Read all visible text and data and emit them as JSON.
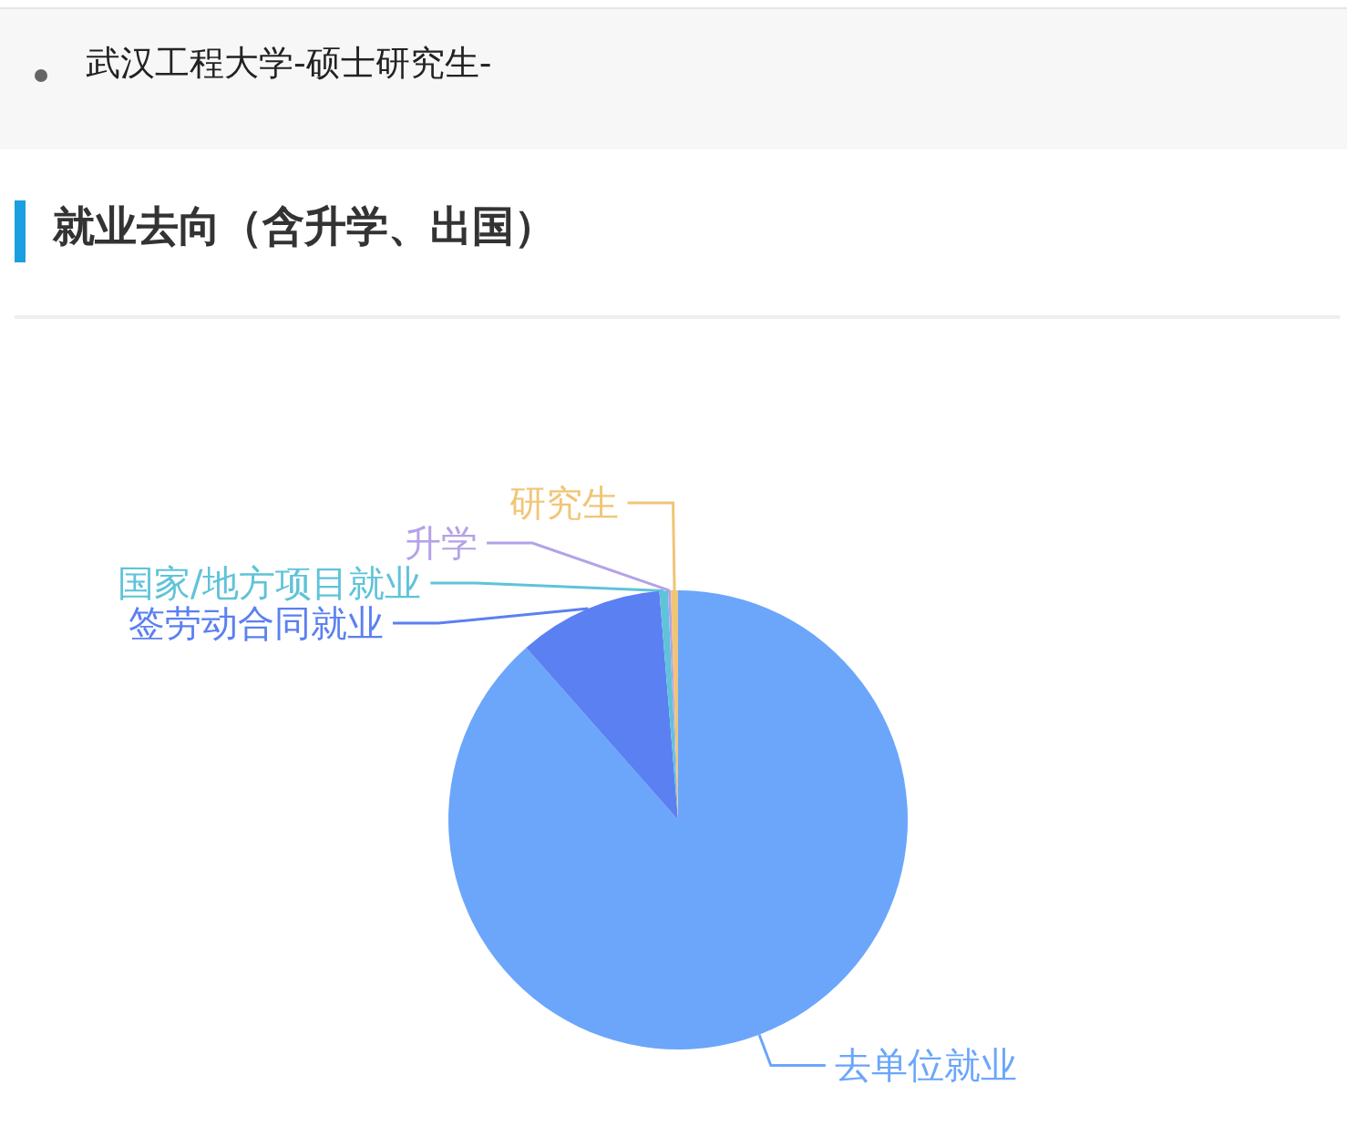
{
  "chart_data": {
    "type": "pie",
    "title": "就业去向（含升学、出国）",
    "subtitle": "武汉工程大学-硕士研究生-",
    "categories": [
      "去单位就业",
      "签劳动合同就业",
      "国家/地方项目就业",
      "升学",
      "研究生"
    ],
    "values": [
      88.5,
      10.2,
      0.6,
      0.2,
      0.5
    ],
    "colors": [
      "#6ba6fb",
      "#5b80f1",
      "#5fc3d9",
      "#b4a2e8",
      "#f1c576"
    ]
  }
}
